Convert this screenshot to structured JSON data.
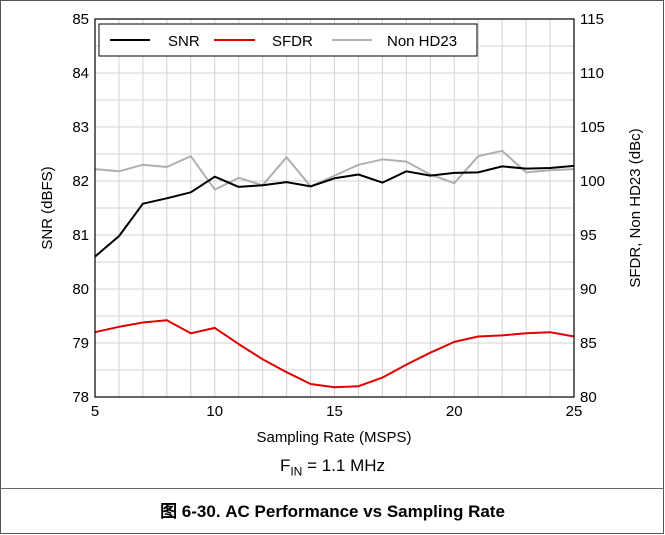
{
  "chart_data": {
    "type": "line",
    "xlabel": "Sampling Rate (MSPS)",
    "ylabel_left": "SNR (dBFS)",
    "ylabel_right": "SFDR, Non HD23 (dBc)",
    "xlim": [
      5,
      25
    ],
    "ylim_left": [
      78,
      85
    ],
    "ylim_right": [
      80,
      115
    ],
    "x_ticks": [
      "5",
      "10",
      "15",
      "20",
      "25"
    ],
    "y_ticks_left": [
      "78",
      "79",
      "80",
      "81",
      "82",
      "83",
      "84",
      "85"
    ],
    "y_ticks_right": [
      "80",
      "85",
      "90",
      "95",
      "100",
      "105",
      "110",
      "115"
    ],
    "grid": true,
    "legend_position": "top-left",
    "x": [
      5,
      6,
      7,
      8,
      9,
      10,
      11,
      12,
      13,
      14,
      15,
      16,
      17,
      18,
      19,
      20,
      21,
      22,
      23,
      24,
      25
    ],
    "series": [
      {
        "name": "SNR",
        "axis": "left",
        "color": "#000000",
        "values": [
          80.6,
          80.98,
          81.58,
          81.68,
          81.79,
          82.08,
          81.89,
          81.92,
          81.98,
          81.9,
          82.05,
          82.12,
          81.97,
          82.18,
          82.1,
          82.15,
          82.16,
          82.27,
          82.23,
          82.24,
          82.28
        ]
      },
      {
        "name": "SFDR",
        "axis": "right",
        "color": "#e00000",
        "values": [
          86.0,
          86.5,
          86.9,
          87.1,
          85.9,
          86.4,
          84.9,
          83.5,
          82.3,
          81.2,
          80.9,
          81.0,
          81.8,
          83.0,
          84.1,
          85.1,
          85.6,
          85.7,
          85.9,
          86.0,
          85.6
        ]
      },
      {
        "name": "Non HD23",
        "axis": "right",
        "color": "#b0b0b0",
        "values": [
          101.1,
          100.9,
          101.5,
          101.3,
          102.3,
          99.2,
          100.3,
          99.6,
          102.2,
          99.5,
          100.5,
          101.5,
          102.0,
          101.8,
          100.6,
          99.8,
          102.3,
          102.8,
          100.8,
          101.0,
          101.1
        ]
      }
    ]
  },
  "note": {
    "f_symbol": "F",
    "f_sub": "IN",
    "f_value": "= 1.1 MHz"
  },
  "caption": "图 6-30. AC Performance vs Sampling Rate"
}
